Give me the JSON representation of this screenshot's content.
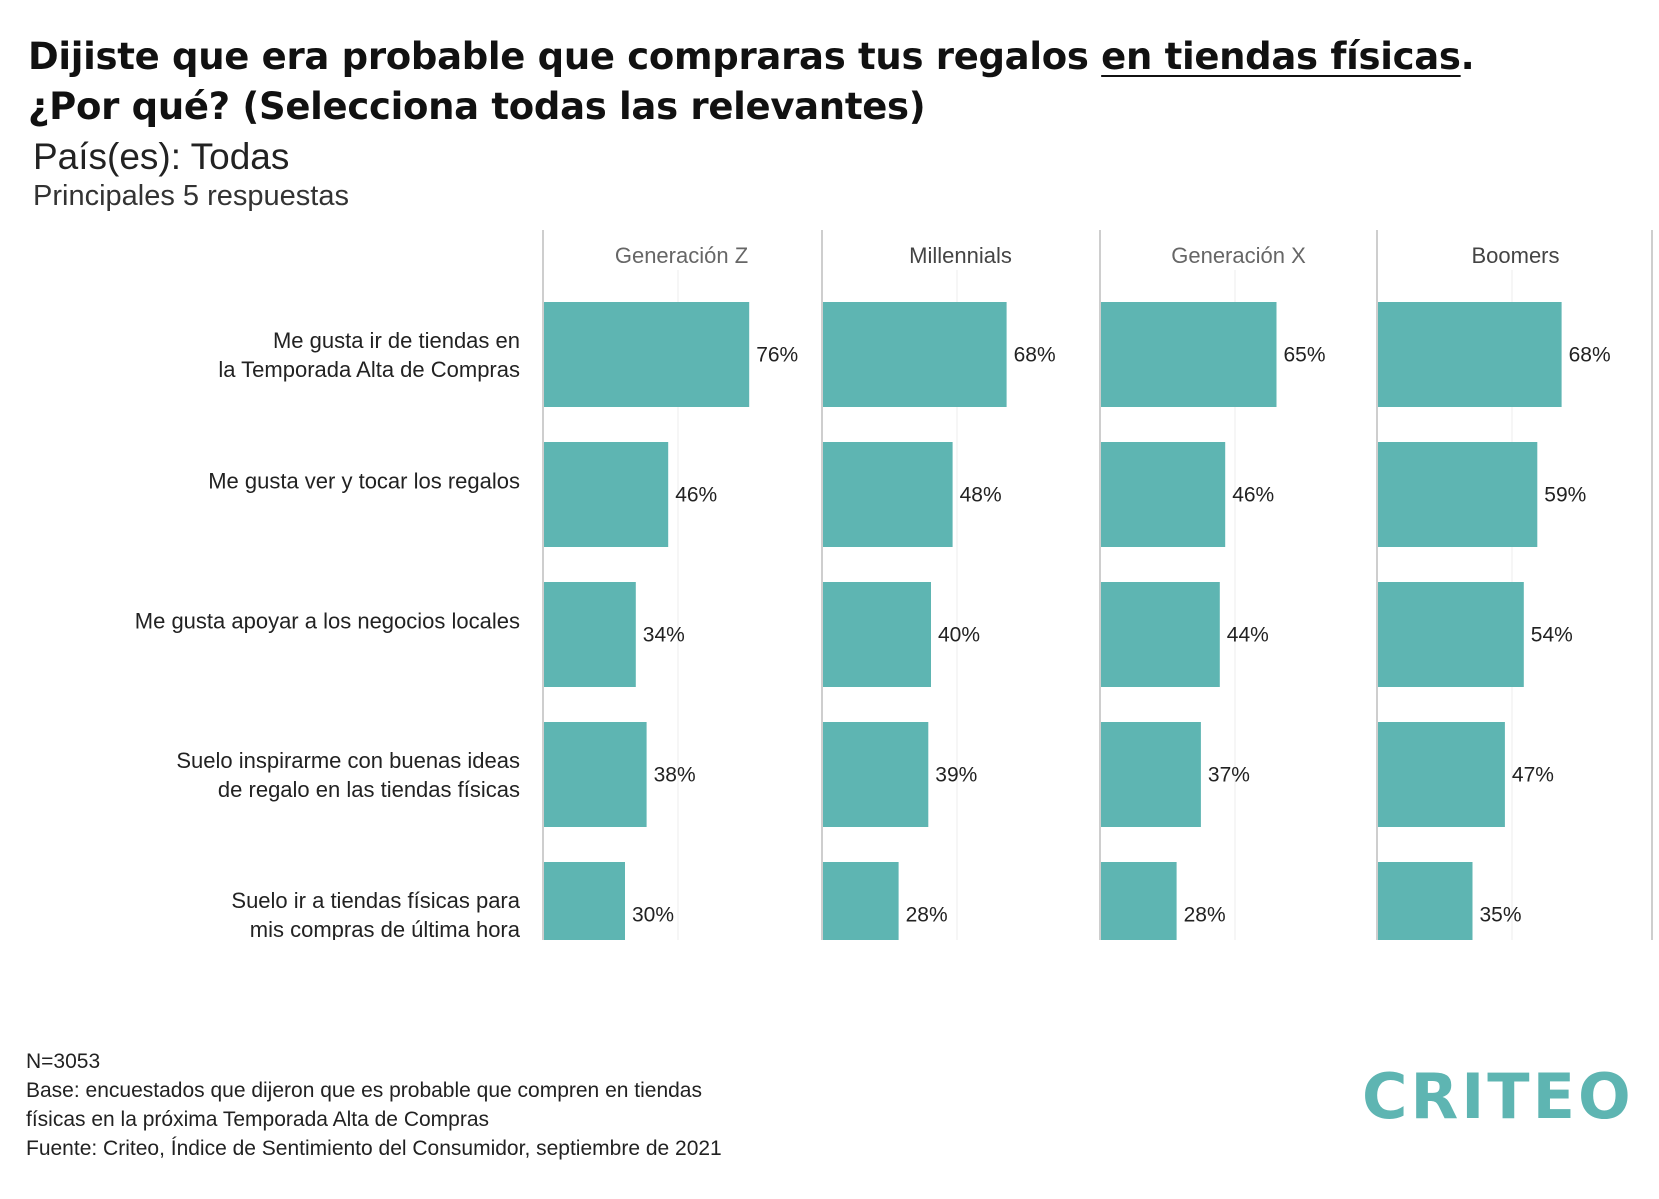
{
  "title": {
    "line1_a": "Dijiste que era probable que compraras tus regalos ",
    "line1_underlined": "en tiendas físicas",
    "line1_b": ".",
    "line2": "¿Por qué? (Selecciona todas las relevantes)"
  },
  "subtitle": "País(es): Todas",
  "subtitle2": "Principales 5 respuestas",
  "chart_data": {
    "type": "bar",
    "orientation": "horizontal",
    "panels": [
      "Generación Z",
      "Millennials",
      "Generación X",
      "Boomers"
    ],
    "categories": [
      [
        "Me gusta ir de tiendas en",
        "la Temporada Alta de Compras"
      ],
      [
        "Me gusta ver y tocar los regalos"
      ],
      [
        "Me gusta apoyar a los negocios locales"
      ],
      [
        "Suelo inspirarme con buenas ideas",
        "de regalo en las tiendas físicas"
      ],
      [
        "Suelo ir a tiendas físicas para",
        "mis compras de última hora"
      ]
    ],
    "series": [
      {
        "name": "Generación Z",
        "values": [
          76,
          46,
          34,
          38,
          30
        ]
      },
      {
        "name": "Millennials",
        "values": [
          68,
          48,
          40,
          39,
          28
        ]
      },
      {
        "name": "Generación X",
        "values": [
          65,
          46,
          44,
          37,
          28
        ]
      },
      {
        "name": "Boomers",
        "values": [
          68,
          59,
          54,
          47,
          35
        ]
      }
    ],
    "value_suffix": "%",
    "xlim": [
      0,
      100
    ],
    "grid": true,
    "bar_color": "#5eb5b2"
  },
  "footer": {
    "n": "N=3053",
    "base1": "Base: encuestados que dijeron que es probable que compren en tiendas",
    "base2": "físicas en la próxima Temporada Alta de Compras",
    "source": "Fuente: Criteo, Índice de Sentimiento del Consumidor, septiembre de 2021"
  },
  "logo": "CRITEO"
}
